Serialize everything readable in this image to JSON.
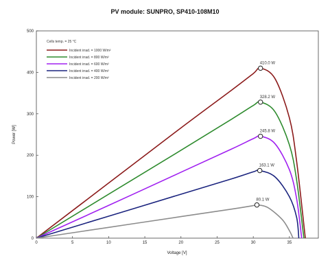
{
  "chart_data": {
    "type": "line",
    "title": "PV module:  SUNPRO,  SP410-108M10",
    "xlabel": "Voltage [V]",
    "ylabel": "Power [W]",
    "xlim": [
      0,
      39
    ],
    "ylim": [
      0,
      500
    ],
    "xticks": [
      0,
      5,
      10,
      15,
      20,
      25,
      30,
      35
    ],
    "yticks": [
      0,
      100,
      200,
      300,
      400,
      500
    ],
    "grid": false,
    "legend_placement": "top-left",
    "legend_header": "Cells temp. = 25 °C",
    "series": [
      {
        "name": "Incident irrad. = 1000 W/m²",
        "color": "#8b1a1a",
        "x": [
          0,
          10,
          20,
          27,
          30,
          31.0,
          33,
          35,
          36,
          37.2
        ],
        "y": [
          0,
          133,
          266,
          357,
          397,
          410.0,
          385,
          290,
          185,
          0
        ],
        "mpp_label": "410.0 W",
        "mpp_x": 31.0,
        "mpp_y": 410.0
      },
      {
        "name": "Incident irrad. = 800 W/m²",
        "color": "#2e8b2e",
        "x": [
          0,
          10,
          20,
          27,
          30,
          31.0,
          33,
          35,
          36,
          37.0
        ],
        "y": [
          0,
          106,
          212,
          287,
          320,
          328.2,
          305,
          225,
          140,
          0
        ],
        "mpp_label": "328.2 W",
        "mpp_x": 31.0,
        "mpp_y": 328.2
      },
      {
        "name": "Incident irrad. = 600 W/m²",
        "color": "#a020f0",
        "x": [
          0,
          10,
          20,
          27,
          30,
          31.0,
          33,
          35,
          36,
          36.7
        ],
        "y": [
          0,
          79,
          159,
          215,
          240,
          245.8,
          228,
          165,
          95,
          0
        ],
        "mpp_label": "245.8 W",
        "mpp_x": 31.0,
        "mpp_y": 245.8
      },
      {
        "name": "Incident irrad. = 400 W/m²",
        "color": "#1a237e",
        "x": [
          0,
          10,
          20,
          27,
          30,
          30.9,
          33,
          35,
          36,
          36.3
        ],
        "y": [
          0,
          53,
          106,
          143,
          160,
          163.1,
          148,
          100,
          50,
          0
        ],
        "mpp_label": "163.1 W",
        "mpp_x": 30.9,
        "mpp_y": 163.1
      },
      {
        "name": "Incident irrad. = 200 W/m²",
        "color": "#8c8c8c",
        "x": [
          0,
          10,
          20,
          27,
          30,
          30.5,
          32,
          34,
          35,
          35.5
        ],
        "y": [
          0,
          26,
          52,
          70,
          78.5,
          80.1,
          74,
          45,
          18,
          0
        ],
        "mpp_label": "80.1 W",
        "mpp_x": 30.5,
        "mpp_y": 80.1
      }
    ]
  }
}
